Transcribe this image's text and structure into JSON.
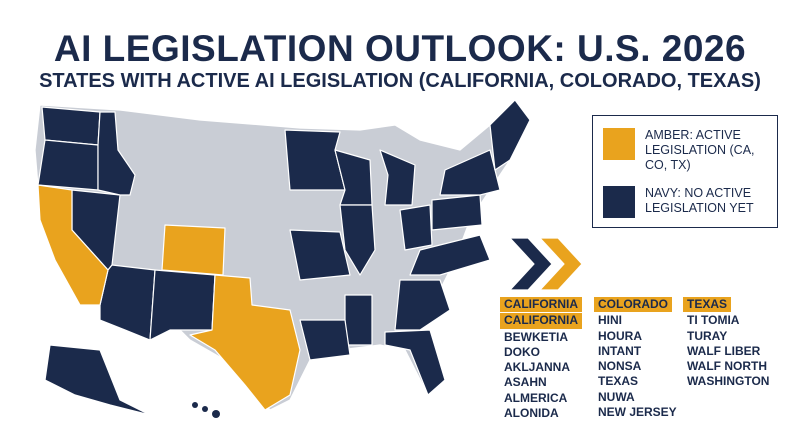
{
  "header": {
    "title": "AI LEGISLATION OUTLOOK: U.S. 2026",
    "subtitle": "STATES WITH ACTIVE AI LEGISLATION (CALIFORNIA, COLORADO, TEXAS)"
  },
  "legend": {
    "items": [
      {
        "label": "AMBER: ACTIVE LEGISLATION (CA, CO, TX)"
      },
      {
        "label": "NAVY: NO ACTIVE LEGISLATION YET"
      }
    ]
  },
  "lists": [
    {
      "headers": [
        "CALIFORNIA",
        "CALIFORNIA"
      ],
      "items": [
        "BEWKETIA",
        "DOKO",
        "AKLJANNA",
        "ASAHN",
        "ALMERICA",
        "ALONIDA"
      ]
    },
    {
      "headers": [
        "COLORADO"
      ],
      "items": [
        "HINI",
        "HOURA",
        "INTANT",
        "NONSA",
        "TEXAS",
        "NUWA",
        "NEW JERSEY"
      ]
    },
    {
      "headers": [
        "TEXAS"
      ],
      "items": [
        "TI TOMIA",
        "TURAY",
        "WALF LIBER",
        "WALF NORTH",
        "WASHINGTON"
      ]
    }
  ]
}
